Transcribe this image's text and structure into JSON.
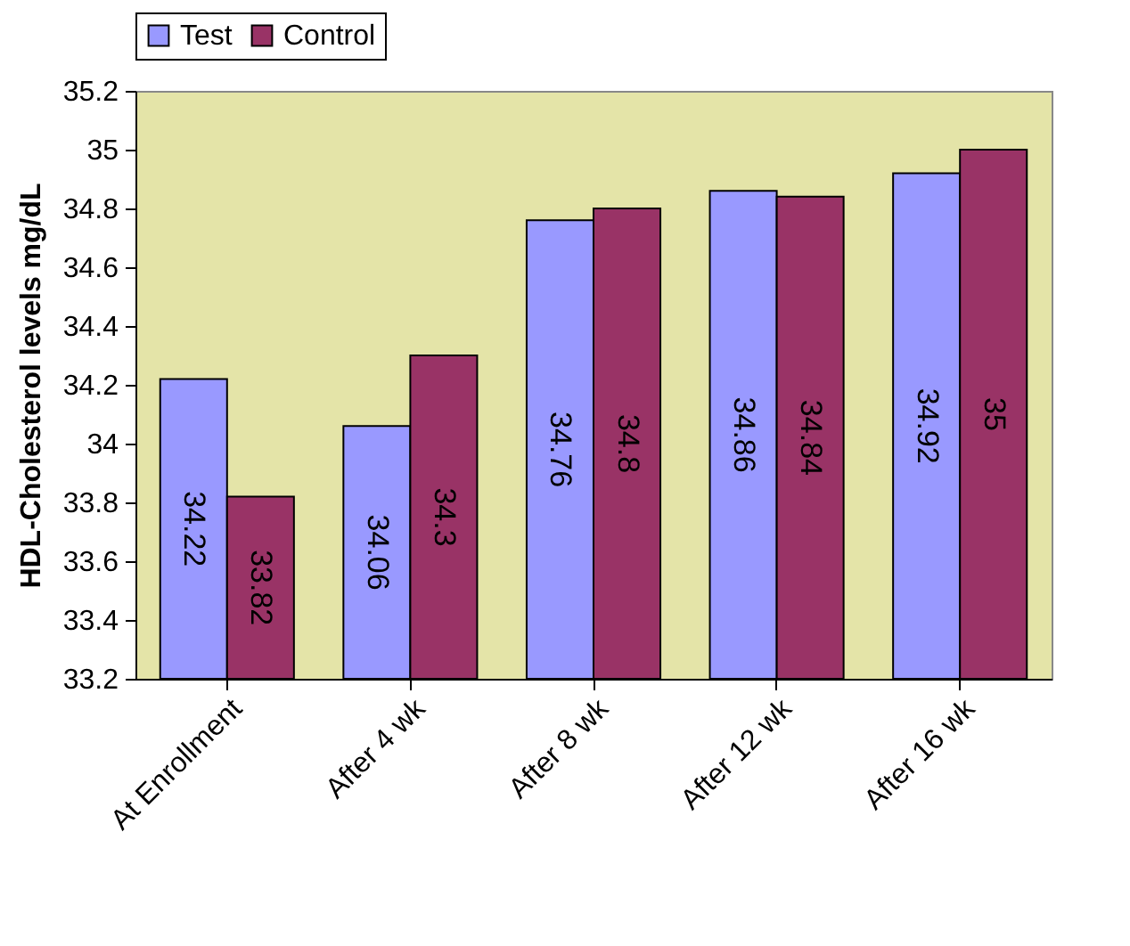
{
  "chart_data": {
    "type": "bar",
    "ylabel": "HDL-Cholesterol levels mg/dL",
    "categories": [
      "At Enrollment",
      "After 4 wk",
      "After 8 wk",
      "After 12 wk",
      "After 16 wk"
    ],
    "series": [
      {
        "name": "Test",
        "color": "#9999ff",
        "values": [
          34.22,
          34.06,
          34.76,
          34.86,
          34.92
        ]
      },
      {
        "name": "Control",
        "color": "#993366",
        "values": [
          33.82,
          34.3,
          34.8,
          34.84,
          35
        ]
      }
    ],
    "ylim": [
      33.2,
      35.2
    ],
    "yticks": [
      33.2,
      33.4,
      33.6,
      33.8,
      34,
      34.2,
      34.4,
      34.6,
      34.8,
      35,
      35.2
    ],
    "grid": false,
    "legend": "top",
    "data_labels": true
  }
}
